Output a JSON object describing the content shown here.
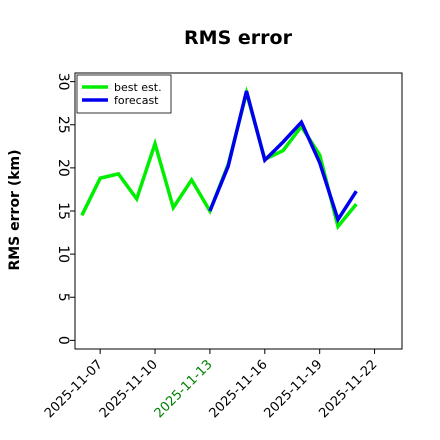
{
  "chart_data": {
    "type": "line",
    "title": "RMS error",
    "ylabel": "RMS error (km)",
    "xlabel": "",
    "ylim": [
      -1,
      31
    ],
    "yticks": [
      0,
      5,
      10,
      15,
      20,
      25,
      30
    ],
    "xlim": [
      "2025-11-05 15:00",
      "2025-11-23 12:00"
    ],
    "xticks": [
      {
        "date": "2025-11-07",
        "label": "2025-11-07",
        "color": "#000000"
      },
      {
        "date": "2025-11-10",
        "label": "2025-11-10",
        "color": "#000000"
      },
      {
        "date": "2025-11-13",
        "label": "2025-11-13",
        "color": "#008000"
      },
      {
        "date": "2025-11-16",
        "label": "2025-11-16",
        "color": "#000000"
      },
      {
        "date": "2025-11-19",
        "label": "2025-11-19",
        "color": "#000000"
      },
      {
        "date": "2025-11-22",
        "label": "2025-11-22",
        "color": "#000000"
      }
    ],
    "legend": {
      "position": "top-left"
    },
    "grid": false,
    "series": [
      {
        "name": "best est.",
        "color": "#00ee00",
        "points": [
          [
            "2025-11-06 00:00",
            14.5
          ],
          [
            "2025-11-07 00:00",
            18.8
          ],
          [
            "2025-11-08 00:00",
            19.3
          ],
          [
            "2025-11-09 00:00",
            16.4
          ],
          [
            "2025-11-10 00:00",
            22.8
          ],
          [
            "2025-11-11 00:00",
            15.4
          ],
          [
            "2025-11-12 00:00",
            18.6
          ],
          [
            "2025-11-13 00:00",
            15.0
          ],
          [
            "2025-11-14 00:00",
            20.4
          ],
          [
            "2025-11-15 00:00",
            28.7
          ],
          [
            "2025-11-16 00:00",
            21.0
          ],
          [
            "2025-11-17 00:00",
            22.0
          ],
          [
            "2025-11-18 00:00",
            24.8
          ],
          [
            "2025-11-19 00:00",
            21.5
          ],
          [
            "2025-11-20 00:00",
            13.2
          ],
          [
            "2025-11-21 00:00",
            15.8
          ]
        ]
      },
      {
        "name": "forecast",
        "color": "#0000ee",
        "points": [
          [
            "2025-11-13 00:00",
            15.0
          ],
          [
            "2025-11-14 00:00",
            20.2
          ],
          [
            "2025-11-15 00:00",
            28.9
          ],
          [
            "2025-11-16 00:00",
            20.9
          ],
          [
            "2025-11-17 00:00",
            23.0
          ],
          [
            "2025-11-18 00:00",
            25.3
          ],
          [
            "2025-11-19 00:00",
            20.6
          ],
          [
            "2025-11-20 00:00",
            14.0
          ],
          [
            "2025-11-21 00:00",
            17.3
          ]
        ]
      }
    ]
  }
}
